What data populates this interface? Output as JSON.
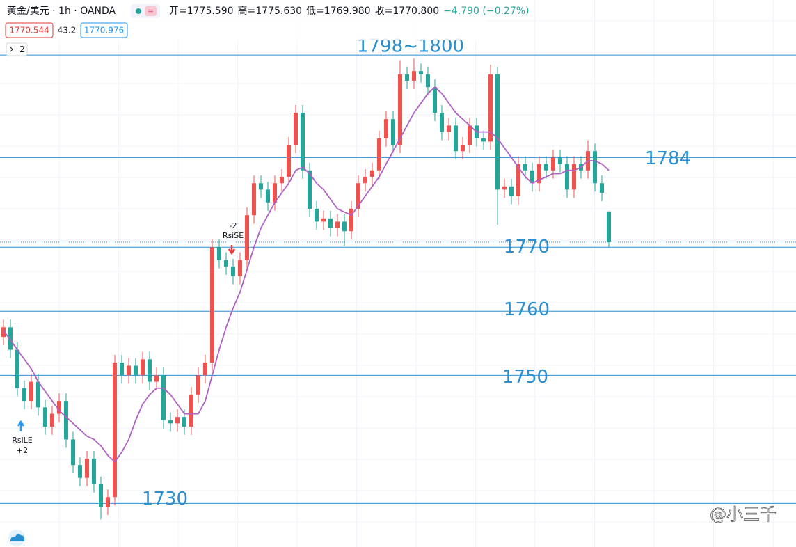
{
  "header": {
    "symbol": "黄金/美元 · 1h · OANDA",
    "ohlc": [
      "开=1775.590",
      "高=1775.630",
      "低=1769.980",
      "收=1770.800"
    ],
    "change": "−4.790 (−0.27%)",
    "badges": [
      "1770.544",
      "43.2",
      "1770.976"
    ],
    "collapse": "2"
  },
  "chart_data": {
    "type": "candlestick",
    "ylim": [
      1723.2,
      1808.6
    ],
    "up_color": "#ef5350",
    "down_color": "#26a69a",
    "open": [
      1756,
      1757.5,
      1754,
      1748,
      1746,
      1749,
      1745,
      1742,
      1744,
      1746,
      1740,
      1736,
      1734,
      1737,
      1733,
      1729.5,
      1731,
      1752,
      1750,
      1751.5,
      1750,
      1752.5,
      1749,
      1750,
      1743,
      1742.5,
      1743.5,
      1742,
      1747,
      1750,
      1752,
      1770,
      1768,
      1767,
      1765.5,
      1768,
      1775,
      1780,
      1779,
      1777,
      1780,
      1781,
      1786,
      1791,
      1782,
      1776,
      1774,
      1774.5,
      1773,
      1774,
      1772.5,
      1776,
      1780,
      1781,
      1782,
      1787,
      1790,
      1786,
      1797,
      1796,
      1797.5,
      1797,
      1795,
      1791,
      1788,
      1789,
      1785,
      1786,
      1789,
      1787,
      1786.5,
      1797,
      1779,
      1779.5,
      1778,
      1783,
      1782,
      1780,
      1783,
      1782,
      1784,
      1783,
      1779,
      1783,
      1782,
      1785,
      1780,
      1775.59
    ],
    "high": [
      1758.7,
      1758.7,
      1755.2,
      1749.2,
      1750.2,
      1750.2,
      1746.2,
      1745.2,
      1747.2,
      1747.2,
      1741.2,
      1737.2,
      1738.2,
      1738.2,
      1734.2,
      1732.2,
      1753.2,
      1753.2,
      1752.7,
      1752.7,
      1753.7,
      1753.7,
      1751.2,
      1751.2,
      1744.2,
      1744.7,
      1744.7,
      1748.2,
      1751.2,
      1753.2,
      1771.2,
      1771.2,
      1769.2,
      1768.2,
      1769.2,
      1776.2,
      1781.2,
      1781.2,
      1780.2,
      1781.2,
      1782.2,
      1787.2,
      1792.2,
      1792.2,
      1783.2,
      1777.2,
      1775.7,
      1775.7,
      1775.2,
      1775.2,
      1777.2,
      1781.2,
      1782.2,
      1783.2,
      1788.2,
      1791.2,
      1791.2,
      1799.2,
      1798.2,
      1799.5,
      1798.7,
      1798.2,
      1796.2,
      1792.2,
      1790.2,
      1790.2,
      1787.2,
      1790.2,
      1790.2,
      1788.2,
      1798.5,
      1798.2,
      1780.7,
      1780.7,
      1784.2,
      1784.2,
      1783.2,
      1784.2,
      1784.2,
      1785.2,
      1785.2,
      1784.2,
      1784.2,
      1784.2,
      1786.7,
      1786.2,
      1781.2,
      1775.63
    ],
    "low": [
      1754.7,
      1752.7,
      1746.7,
      1744.7,
      1744.7,
      1743.7,
      1740.7,
      1740.7,
      1742.7,
      1738.7,
      1734.7,
      1732.7,
      1732.7,
      1731.7,
      1727.5,
      1728.2,
      1729.7,
      1748.7,
      1748.7,
      1748.7,
      1748.7,
      1747.7,
      1747.7,
      1741.7,
      1741.2,
      1741.2,
      1740.7,
      1740.7,
      1745.7,
      1748.7,
      1750.7,
      1766.7,
      1765.7,
      1764.2,
      1764.2,
      1766.7,
      1773.7,
      1777.7,
      1775.7,
      1775.7,
      1778.7,
      1779.7,
      1784.7,
      1780.7,
      1774.7,
      1772.7,
      1772.7,
      1771.7,
      1771.7,
      1770.2,
      1771.2,
      1774.7,
      1778.7,
      1779.7,
      1780.7,
      1785.7,
      1784.7,
      1784.7,
      1794.7,
      1794.7,
      1795.7,
      1793.7,
      1789.7,
      1786.7,
      1786.7,
      1783.7,
      1783.7,
      1784.7,
      1785.7,
      1785.2,
      1785.2,
      1773.5,
      1777.7,
      1776.7,
      1776.7,
      1780.7,
      1778.7,
      1778.7,
      1780.7,
      1780.7,
      1781.7,
      1777.7,
      1777.7,
      1780.7,
      1780.7,
      1778.7,
      1777.2,
      1769.98
    ],
    "close": [
      1757.5,
      1754,
      1748,
      1746,
      1749,
      1745,
      1742,
      1744,
      1746,
      1740,
      1736,
      1734,
      1737,
      1733,
      1729.5,
      1731,
      1752,
      1750,
      1751.5,
      1750,
      1752.5,
      1749,
      1750,
      1743,
      1742.5,
      1743.5,
      1742,
      1747,
      1750,
      1752,
      1770,
      1768,
      1767,
      1765.5,
      1768,
      1775,
      1780,
      1779,
      1777,
      1780,
      1781,
      1786,
      1791,
      1782,
      1776,
      1774,
      1774.5,
      1773,
      1774,
      1772.5,
      1776,
      1780,
      1781,
      1782,
      1787,
      1790,
      1786,
      1797,
      1796,
      1797.5,
      1797,
      1795,
      1791,
      1788,
      1789,
      1785,
      1786,
      1789,
      1787,
      1786.5,
      1797,
      1779,
      1779.5,
      1778,
      1783,
      1782,
      1780,
      1783,
      1782,
      1784,
      1783,
      1779,
      1783,
      1782,
      1785,
      1780,
      1778.5,
      1770.8
    ],
    "ma": {
      "color": "#b05fc4",
      "values": [
        1757,
        1755.5,
        1754,
        1752.5,
        1751,
        1749,
        1747.5,
        1746,
        1744.5,
        1743.5,
        1742.5,
        1741.5,
        1740.5,
        1740,
        1739,
        1737.5,
        1736.5,
        1738,
        1740,
        1743,
        1745.5,
        1747,
        1748,
        1748,
        1747,
        1745.5,
        1744,
        1744,
        1744,
        1746,
        1750,
        1754,
        1757.5,
        1760.5,
        1763,
        1766.5,
        1770,
        1773,
        1775,
        1777,
        1778.5,
        1780,
        1782,
        1782.5,
        1781.5,
        1780,
        1779,
        1777.5,
        1776,
        1775.5,
        1775,
        1776.5,
        1778,
        1779.5,
        1781,
        1783,
        1785,
        1787,
        1789,
        1791,
        1792.5,
        1794,
        1795,
        1794,
        1792.5,
        1791,
        1790,
        1789,
        1788,
        1788,
        1788,
        1787,
        1785.5,
        1784,
        1782.5,
        1781,
        1780,
        1780.5,
        1781,
        1781.5,
        1781.5,
        1782,
        1782,
        1782.5,
        1783.5,
        1783.5,
        1783,
        1782
      ]
    },
    "last_price": 1770.8,
    "level_color": "#2a8fd1",
    "levels": [
      {
        "value": 1800,
        "label": "1798~1800"
      },
      {
        "value": 1784,
        "label": "1784"
      },
      {
        "value": 1770,
        "label": "1770"
      },
      {
        "value": 1760,
        "label": "1760"
      },
      {
        "value": 1750,
        "label": "1750"
      },
      {
        "value": 1730,
        "label": "1730"
      }
    ],
    "signals": [
      {
        "label": "RsiSE",
        "qty": "-2"
      },
      {
        "label": "RsiLE",
        "qty": "+2"
      }
    ]
  },
  "watermark": "@小三千"
}
